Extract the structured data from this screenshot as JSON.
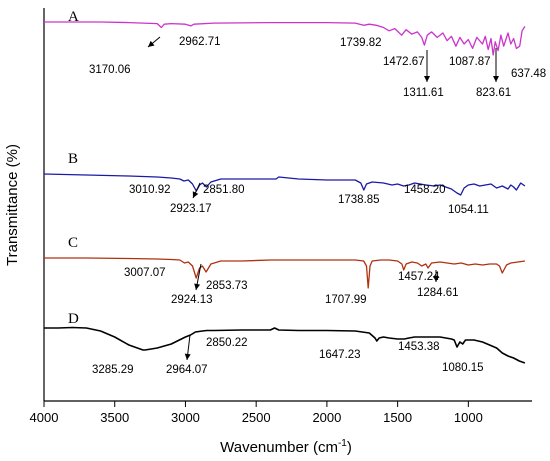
{
  "chart_data": {
    "type": "line",
    "xlabel": "Wavenumber (cm",
    "xlabel_sup": "-1",
    "xlabel_close": ")",
    "ylabel": "Transmittance (%)",
    "xlim": [
      4000,
      550
    ],
    "x_reversed": true,
    "xticks": [
      4000,
      3500,
      3000,
      2500,
      2000,
      1500,
      1000
    ],
    "grid": false,
    "series": [
      {
        "name": "A",
        "color": "#cc33cc",
        "offset": 0,
        "x": [
          4000,
          3600,
          3400,
          3200,
          3170,
          3150,
          3100,
          3000,
          2962,
          2940,
          2800,
          2400,
          2000,
          1800,
          1740,
          1700,
          1650,
          1600,
          1560,
          1520,
          1472,
          1440,
          1400,
          1360,
          1330,
          1311,
          1290,
          1260,
          1220,
          1180,
          1150,
          1120,
          1088,
          1060,
          1030,
          1000,
          970,
          940,
          900,
          880,
          860,
          840,
          824,
          810,
          790,
          770,
          750,
          720,
          700,
          680,
          660,
          637,
          620,
          600
        ],
        "y": [
          0,
          0,
          -0.5,
          -1.5,
          -5,
          -2,
          -1.5,
          -2,
          -3.5,
          -2,
          -1,
          -0.5,
          -0.5,
          -1,
          -3,
          -2,
          -3,
          -5,
          -8,
          -6,
          -12,
          -7,
          -11,
          -9,
          -14,
          -21,
          -12,
          -9,
          -14,
          -10,
          -17,
          -13,
          -22,
          -14,
          -20,
          -16,
          -24,
          -14,
          -20,
          -13,
          -25,
          -15,
          -30,
          -18,
          -26,
          -12,
          -22,
          -10,
          -20,
          -15,
          -24,
          -22,
          -8,
          -4
        ]
      },
      {
        "name": "B",
        "color": "#1a1aa6",
        "offset": 0,
        "x": [
          4000,
          3700,
          3400,
          3200,
          3100,
          3040,
          3011,
          2980,
          2950,
          2923,
          2900,
          2880,
          2852,
          2820,
          2750,
          2500,
          2360,
          2340,
          2200,
          2000,
          1800,
          1760,
          1739,
          1720,
          1680,
          1600,
          1540,
          1500,
          1458,
          1420,
          1380,
          1300,
          1240,
          1200,
          1160,
          1120,
          1080,
          1054,
          1030,
          1000,
          960,
          920,
          880,
          840,
          800,
          760,
          720,
          700,
          680,
          660,
          630,
          600
        ],
        "y": [
          0,
          -1,
          -2,
          -3,
          -4,
          -5,
          -7,
          -6,
          -10,
          -17,
          -11,
          -9,
          -13,
          -8,
          -5,
          -5,
          -5,
          -3,
          -5,
          -6,
          -6,
          -9,
          -16,
          -10,
          -8,
          -9,
          -11,
          -10,
          -12,
          -11,
          -9,
          -11,
          -12,
          -11,
          -13,
          -15,
          -19,
          -21,
          -14,
          -11,
          -10,
          -12,
          -11,
          -10,
          -14,
          -12,
          -15,
          -11,
          -13,
          -16,
          -9,
          -12
        ]
      },
      {
        "name": "C",
        "color": "#b03010",
        "offset": 0,
        "x": [
          4000,
          3700,
          3400,
          3200,
          3100,
          3040,
          3007,
          2980,
          2950,
          2924,
          2900,
          2880,
          2854,
          2820,
          2750,
          2600,
          2400,
          2200,
          2000,
          1800,
          1740,
          1720,
          1708,
          1695,
          1680,
          1620,
          1560,
          1500,
          1470,
          1457,
          1440,
          1400,
          1360,
          1330,
          1300,
          1285,
          1260,
          1200,
          1150,
          1100,
          1050,
          1000,
          950,
          900,
          850,
          800,
          780,
          760,
          730,
          700,
          650,
          600
        ],
        "y": [
          0,
          0,
          -0.5,
          -1,
          -1.5,
          -2,
          -5,
          -4,
          -8,
          -20,
          -10,
          -8,
          -14,
          -6,
          -3,
          -3,
          -2,
          -2,
          -2,
          -2,
          -3,
          -8,
          -30,
          -8,
          -3,
          -2,
          -2,
          -3,
          -6,
          -12,
          -6,
          -4,
          -5,
          -8,
          -6,
          -10,
          -5,
          -4,
          -5,
          -6,
          -5,
          -7,
          -6,
          -7,
          -6,
          -6,
          -8,
          -15,
          -7,
          -5,
          -4,
          -3
        ]
      },
      {
        "name": "D",
        "color": "#000000",
        "offset": 0,
        "x": [
          4000,
          3900,
          3800,
          3700,
          3600,
          3500,
          3400,
          3300,
          3285,
          3200,
          3100,
          3000,
          2964,
          2930,
          2880,
          2850,
          2800,
          2600,
          2400,
          2370,
          2340,
          2200,
          2000,
          1800,
          1700,
          1660,
          1647,
          1630,
          1600,
          1560,
          1500,
          1453,
          1420,
          1380,
          1300,
          1200,
          1120,
          1100,
          1080,
          1060,
          1040,
          1020,
          1000,
          960,
          900,
          850,
          800,
          760,
          720,
          680,
          640,
          600
        ],
        "y": [
          0,
          0,
          0.5,
          0,
          -3,
          -9,
          -17,
          -22,
          -22,
          -20,
          -16,
          -9,
          -7,
          -4,
          -3,
          -2.5,
          -2.5,
          -2,
          -2,
          0,
          -2,
          -2.5,
          -2.5,
          -3,
          -5,
          -10,
          -13,
          -10,
          -9,
          -10,
          -11,
          -11,
          -10,
          -9,
          -9,
          -9,
          -11,
          -12,
          -19,
          -14,
          -16,
          -12,
          -12,
          -12,
          -14,
          -17,
          -20,
          -25,
          -28,
          -30,
          -33,
          -35
        ]
      }
    ],
    "annotations": [
      {
        "series": "A",
        "text": "2962.71"
      },
      {
        "series": "A",
        "text": "3170.06"
      },
      {
        "series": "A",
        "text": "1739.82"
      },
      {
        "series": "A",
        "text": "1472.67"
      },
      {
        "series": "A",
        "text": "1311.61"
      },
      {
        "series": "A",
        "text": "1087.87"
      },
      {
        "series": "A",
        "text": "823.61"
      },
      {
        "series": "A",
        "text": "637.48"
      },
      {
        "series": "B",
        "text": "3010.92"
      },
      {
        "series": "B",
        "text": "2851.80"
      },
      {
        "series": "B",
        "text": "2923.17"
      },
      {
        "series": "B",
        "text": "1738.85"
      },
      {
        "series": "B",
        "text": "1458.20"
      },
      {
        "series": "B",
        "text": "1054.11"
      },
      {
        "series": "C",
        "text": "3007.07"
      },
      {
        "series": "C",
        "text": "2853.73"
      },
      {
        "series": "C",
        "text": "2924.13"
      },
      {
        "series": "C",
        "text": "1707.99"
      },
      {
        "series": "C",
        "text": "1457.24"
      },
      {
        "series": "C",
        "text": "1284.61"
      },
      {
        "series": "D",
        "text": "2850.22"
      },
      {
        "series": "D",
        "text": "3285.29"
      },
      {
        "series": "D",
        "text": "2964.07"
      },
      {
        "series": "D",
        "text": "1647.23"
      },
      {
        "series": "D",
        "text": "1453.38"
      },
      {
        "series": "D",
        "text": "1080.15"
      }
    ]
  }
}
